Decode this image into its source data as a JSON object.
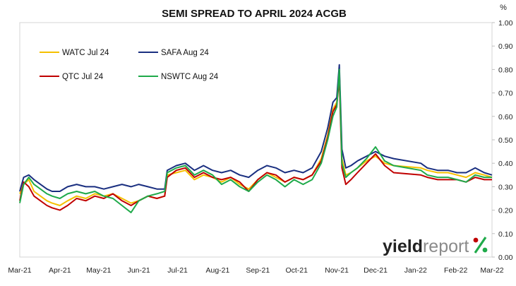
{
  "chart_data": {
    "type": "line",
    "title": "SEMI SPREAD TO APRIL 2024 ACGB",
    "unit_label": "%",
    "xlabel": "",
    "ylabel": "",
    "ylim": [
      0,
      1
    ],
    "y_ticks": [
      "0.00",
      "0.10",
      "0.20",
      "0.30",
      "0.40",
      "0.50",
      "0.60",
      "0.70",
      "0.80",
      "0.90",
      "1.00"
    ],
    "x_range": [
      "2021-03-01",
      "2022-03-01"
    ],
    "x_ticks": [
      {
        "date": "2021-03-01",
        "label": "Mar-21"
      },
      {
        "date": "2021-04-01",
        "label": "Apr-21"
      },
      {
        "date": "2021-05-01",
        "label": "May-21"
      },
      {
        "date": "2021-06-01",
        "label": "Jun-21"
      },
      {
        "date": "2021-07-01",
        "label": "Jul-21"
      },
      {
        "date": "2021-08-01",
        "label": "Aug-21"
      },
      {
        "date": "2021-09-01",
        "label": "Sep-21"
      },
      {
        "date": "2021-10-01",
        "label": "Oct-21"
      },
      {
        "date": "2021-11-01",
        "label": "Nov-21"
      },
      {
        "date": "2021-12-01",
        "label": "Dec-21"
      },
      {
        "date": "2022-01-01",
        "label": "Jan-22"
      },
      {
        "date": "2022-02-01",
        "label": "Feb-22"
      },
      {
        "date": "2022-03-01",
        "label": "Mar-22"
      }
    ],
    "grid": false,
    "legend_position": "top-left",
    "series": [
      {
        "name": "WATC Jul 24",
        "color": "#f5c000",
        "points": [
          [
            "2021-03-01",
            0.27
          ],
          [
            "2021-03-04",
            0.31
          ],
          [
            "2021-03-08",
            0.33
          ],
          [
            "2021-03-12",
            0.28
          ],
          [
            "2021-03-17",
            0.26
          ],
          [
            "2021-03-22",
            0.24
          ],
          [
            "2021-03-26",
            0.23
          ],
          [
            "2021-04-01",
            0.22
          ],
          [
            "2021-04-07",
            0.24
          ],
          [
            "2021-04-14",
            0.26
          ],
          [
            "2021-04-21",
            0.25
          ],
          [
            "2021-04-28",
            0.27
          ],
          [
            "2021-05-05",
            0.26
          ],
          [
            "2021-05-12",
            0.27
          ],
          [
            "2021-05-19",
            0.25
          ],
          [
            "2021-05-26",
            0.23
          ],
          [
            "2021-06-01",
            0.24
          ],
          [
            "2021-06-08",
            0.26
          ],
          [
            "2021-06-15",
            0.25
          ],
          [
            "2021-06-21",
            0.26
          ],
          [
            "2021-06-23",
            0.35
          ],
          [
            "2021-06-30",
            0.36
          ],
          [
            "2021-07-07",
            0.37
          ],
          [
            "2021-07-14",
            0.33
          ],
          [
            "2021-07-21",
            0.35
          ],
          [
            "2021-07-28",
            0.34
          ],
          [
            "2021-08-04",
            0.32
          ],
          [
            "2021-08-11",
            0.34
          ],
          [
            "2021-08-18",
            0.31
          ],
          [
            "2021-08-25",
            0.29
          ],
          [
            "2021-09-01",
            0.33
          ],
          [
            "2021-09-08",
            0.36
          ],
          [
            "2021-09-15",
            0.34
          ],
          [
            "2021-09-22",
            0.32
          ],
          [
            "2021-09-29",
            0.34
          ],
          [
            "2021-10-06",
            0.33
          ],
          [
            "2021-10-13",
            0.35
          ],
          [
            "2021-10-20",
            0.42
          ],
          [
            "2021-10-25",
            0.52
          ],
          [
            "2021-10-29",
            0.63
          ],
          [
            "2021-11-01",
            0.66
          ],
          [
            "2021-11-03",
            0.79
          ],
          [
            "2021-11-05",
            0.42
          ],
          [
            "2021-11-08",
            0.35
          ],
          [
            "2021-11-12",
            0.36
          ],
          [
            "2021-11-17",
            0.38
          ],
          [
            "2021-11-24",
            0.41
          ],
          [
            "2021-12-01",
            0.43
          ],
          [
            "2021-12-08",
            0.4
          ],
          [
            "2021-12-15",
            0.39
          ],
          [
            "2022-01-05",
            0.38
          ],
          [
            "2022-01-10",
            0.37
          ],
          [
            "2022-01-18",
            0.36
          ],
          [
            "2022-01-26",
            0.36
          ],
          [
            "2022-02-02",
            0.35
          ],
          [
            "2022-02-09",
            0.34
          ],
          [
            "2022-02-16",
            0.36
          ],
          [
            "2022-02-23",
            0.35
          ],
          [
            "2022-03-01",
            0.34
          ]
        ]
      },
      {
        "name": "SAFA Aug 24",
        "color": "#1a2f80",
        "points": [
          [
            "2021-03-01",
            0.28
          ],
          [
            "2021-03-04",
            0.34
          ],
          [
            "2021-03-08",
            0.35
          ],
          [
            "2021-03-12",
            0.33
          ],
          [
            "2021-03-17",
            0.31
          ],
          [
            "2021-03-22",
            0.29
          ],
          [
            "2021-03-26",
            0.28
          ],
          [
            "2021-04-01",
            0.28
          ],
          [
            "2021-04-07",
            0.3
          ],
          [
            "2021-04-14",
            0.31
          ],
          [
            "2021-04-21",
            0.3
          ],
          [
            "2021-04-28",
            0.3
          ],
          [
            "2021-05-05",
            0.29
          ],
          [
            "2021-05-12",
            0.3
          ],
          [
            "2021-05-19",
            0.31
          ],
          [
            "2021-05-26",
            0.3
          ],
          [
            "2021-06-01",
            0.31
          ],
          [
            "2021-06-08",
            0.3
          ],
          [
            "2021-06-15",
            0.29
          ],
          [
            "2021-06-21",
            0.29
          ],
          [
            "2021-06-23",
            0.37
          ],
          [
            "2021-06-30",
            0.39
          ],
          [
            "2021-07-07",
            0.4
          ],
          [
            "2021-07-14",
            0.37
          ],
          [
            "2021-07-21",
            0.39
          ],
          [
            "2021-07-28",
            0.37
          ],
          [
            "2021-08-04",
            0.36
          ],
          [
            "2021-08-11",
            0.37
          ],
          [
            "2021-08-18",
            0.35
          ],
          [
            "2021-08-25",
            0.34
          ],
          [
            "2021-09-01",
            0.37
          ],
          [
            "2021-09-08",
            0.39
          ],
          [
            "2021-09-15",
            0.38
          ],
          [
            "2021-09-22",
            0.36
          ],
          [
            "2021-09-29",
            0.37
          ],
          [
            "2021-10-06",
            0.36
          ],
          [
            "2021-10-13",
            0.38
          ],
          [
            "2021-10-20",
            0.45
          ],
          [
            "2021-10-25",
            0.55
          ],
          [
            "2021-10-29",
            0.66
          ],
          [
            "2021-11-01",
            0.68
          ],
          [
            "2021-11-03",
            0.82
          ],
          [
            "2021-11-05",
            0.46
          ],
          [
            "2021-11-08",
            0.38
          ],
          [
            "2021-11-12",
            0.39
          ],
          [
            "2021-11-17",
            0.41
          ],
          [
            "2021-11-24",
            0.43
          ],
          [
            "2021-12-01",
            0.45
          ],
          [
            "2021-12-08",
            0.43
          ],
          [
            "2021-12-15",
            0.42
          ],
          [
            "2022-01-05",
            0.4
          ],
          [
            "2022-01-10",
            0.38
          ],
          [
            "2022-01-18",
            0.37
          ],
          [
            "2022-01-26",
            0.37
          ],
          [
            "2022-02-02",
            0.36
          ],
          [
            "2022-02-09",
            0.36
          ],
          [
            "2022-02-16",
            0.38
          ],
          [
            "2022-02-23",
            0.36
          ],
          [
            "2022-03-01",
            0.35
          ]
        ]
      },
      {
        "name": "QTC Jul 24",
        "color": "#c00000",
        "points": [
          [
            "2021-03-01",
            0.24
          ],
          [
            "2021-03-04",
            0.32
          ],
          [
            "2021-03-08",
            0.3
          ],
          [
            "2021-03-12",
            0.26
          ],
          [
            "2021-03-17",
            0.24
          ],
          [
            "2021-03-22",
            0.22
          ],
          [
            "2021-03-26",
            0.21
          ],
          [
            "2021-04-01",
            0.2
          ],
          [
            "2021-04-07",
            0.22
          ],
          [
            "2021-04-14",
            0.25
          ],
          [
            "2021-04-21",
            0.24
          ],
          [
            "2021-04-28",
            0.26
          ],
          [
            "2021-05-05",
            0.25
          ],
          [
            "2021-05-12",
            0.27
          ],
          [
            "2021-05-19",
            0.24
          ],
          [
            "2021-05-26",
            0.22
          ],
          [
            "2021-06-01",
            0.24
          ],
          [
            "2021-06-08",
            0.26
          ],
          [
            "2021-06-15",
            0.25
          ],
          [
            "2021-06-21",
            0.26
          ],
          [
            "2021-06-23",
            0.34
          ],
          [
            "2021-06-30",
            0.37
          ],
          [
            "2021-07-07",
            0.38
          ],
          [
            "2021-07-14",
            0.34
          ],
          [
            "2021-07-21",
            0.36
          ],
          [
            "2021-07-28",
            0.34
          ],
          [
            "2021-08-04",
            0.33
          ],
          [
            "2021-08-11",
            0.34
          ],
          [
            "2021-08-18",
            0.32
          ],
          [
            "2021-08-25",
            0.28
          ],
          [
            "2021-09-01",
            0.33
          ],
          [
            "2021-09-08",
            0.36
          ],
          [
            "2021-09-15",
            0.35
          ],
          [
            "2021-09-22",
            0.32
          ],
          [
            "2021-09-29",
            0.34
          ],
          [
            "2021-10-06",
            0.33
          ],
          [
            "2021-10-13",
            0.35
          ],
          [
            "2021-10-20",
            0.41
          ],
          [
            "2021-10-25",
            0.51
          ],
          [
            "2021-10-29",
            0.62
          ],
          [
            "2021-11-01",
            0.65
          ],
          [
            "2021-11-03",
            0.76
          ],
          [
            "2021-11-05",
            0.38
          ],
          [
            "2021-11-08",
            0.31
          ],
          [
            "2021-11-12",
            0.33
          ],
          [
            "2021-11-17",
            0.36
          ],
          [
            "2021-11-24",
            0.4
          ],
          [
            "2021-12-01",
            0.44
          ],
          [
            "2021-12-08",
            0.39
          ],
          [
            "2021-12-15",
            0.36
          ],
          [
            "2022-01-05",
            0.35
          ],
          [
            "2022-01-10",
            0.34
          ],
          [
            "2022-01-18",
            0.33
          ],
          [
            "2022-01-26",
            0.33
          ],
          [
            "2022-02-02",
            0.33
          ],
          [
            "2022-02-09",
            0.32
          ],
          [
            "2022-02-16",
            0.34
          ],
          [
            "2022-02-23",
            0.33
          ],
          [
            "2022-03-01",
            0.33
          ]
        ]
      },
      {
        "name": "NSWTC Aug 24",
        "color": "#1faa4a",
        "points": [
          [
            "2021-03-01",
            0.23
          ],
          [
            "2021-03-04",
            0.31
          ],
          [
            "2021-03-08",
            0.34
          ],
          [
            "2021-03-12",
            0.31
          ],
          [
            "2021-03-17",
            0.29
          ],
          [
            "2021-03-22",
            0.27
          ],
          [
            "2021-03-26",
            0.26
          ],
          [
            "2021-04-01",
            0.25
          ],
          [
            "2021-04-07",
            0.27
          ],
          [
            "2021-04-14",
            0.28
          ],
          [
            "2021-04-21",
            0.27
          ],
          [
            "2021-04-28",
            0.28
          ],
          [
            "2021-05-05",
            0.26
          ],
          [
            "2021-05-12",
            0.25
          ],
          [
            "2021-05-19",
            0.22
          ],
          [
            "2021-05-26",
            0.19
          ],
          [
            "2021-06-01",
            0.24
          ],
          [
            "2021-06-08",
            0.26
          ],
          [
            "2021-06-15",
            0.27
          ],
          [
            "2021-06-21",
            0.28
          ],
          [
            "2021-06-23",
            0.36
          ],
          [
            "2021-06-30",
            0.38
          ],
          [
            "2021-07-07",
            0.39
          ],
          [
            "2021-07-14",
            0.35
          ],
          [
            "2021-07-21",
            0.37
          ],
          [
            "2021-07-28",
            0.35
          ],
          [
            "2021-08-04",
            0.31
          ],
          [
            "2021-08-11",
            0.33
          ],
          [
            "2021-08-18",
            0.3
          ],
          [
            "2021-08-25",
            0.28
          ],
          [
            "2021-09-01",
            0.32
          ],
          [
            "2021-09-08",
            0.35
          ],
          [
            "2021-09-15",
            0.33
          ],
          [
            "2021-09-22",
            0.3
          ],
          [
            "2021-09-29",
            0.33
          ],
          [
            "2021-10-06",
            0.31
          ],
          [
            "2021-10-13",
            0.33
          ],
          [
            "2021-10-20",
            0.4
          ],
          [
            "2021-10-25",
            0.5
          ],
          [
            "2021-10-29",
            0.6
          ],
          [
            "2021-11-01",
            0.64
          ],
          [
            "2021-11-03",
            0.8
          ],
          [
            "2021-11-05",
            0.4
          ],
          [
            "2021-11-08",
            0.34
          ],
          [
            "2021-11-12",
            0.36
          ],
          [
            "2021-11-17",
            0.38
          ],
          [
            "2021-11-24",
            0.42
          ],
          [
            "2021-12-01",
            0.47
          ],
          [
            "2021-12-08",
            0.41
          ],
          [
            "2021-12-15",
            0.39
          ],
          [
            "2022-01-05",
            0.37
          ],
          [
            "2022-01-10",
            0.35
          ],
          [
            "2022-01-18",
            0.34
          ],
          [
            "2022-01-26",
            0.34
          ],
          [
            "2022-02-02",
            0.33
          ],
          [
            "2022-02-09",
            0.32
          ],
          [
            "2022-02-16",
            0.35
          ],
          [
            "2022-02-23",
            0.34
          ],
          [
            "2022-03-01",
            0.34
          ]
        ]
      }
    ]
  },
  "branding": {
    "part1": "yield",
    "part2": "report",
    "symbol": "%",
    "color_primary": "#222222",
    "color_secondary": "#8a8a8a",
    "color_symbol_top": "#c00000",
    "color_symbol_bottom": "#1faa4a"
  }
}
